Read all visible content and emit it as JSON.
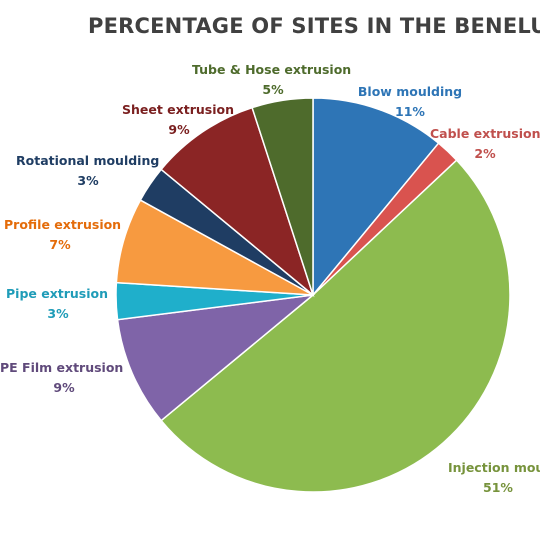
{
  "chart_data": {
    "type": "pie",
    "title": "PERCENTAGE  OF SITES IN THE BENELUX",
    "slices": [
      {
        "name": "Blow moulding",
        "value": 11,
        "label": "11%",
        "color": "#2E75B6"
      },
      {
        "name": "Cable extrusion",
        "value": 2,
        "label": "2%",
        "color": "#D9534F"
      },
      {
        "name": "Injection moulding",
        "value": 51,
        "label": "51%",
        "color": "#8DBB4F"
      },
      {
        "name": "PE Film extrusion",
        "value": 9,
        "label": "9%",
        "color": "#7F64A8"
      },
      {
        "name": "Pipe extrusion",
        "value": 3,
        "label": "3%",
        "color": "#1FAFCB"
      },
      {
        "name": "Profile extrusion",
        "value": 7,
        "label": "7%",
        "color": "#F79A40"
      },
      {
        "name": "Rotational moulding",
        "value": 3,
        "label": "3%",
        "color": "#1F3D63"
      },
      {
        "name": "Sheet extrusion",
        "value": 9,
        "label": "9%",
        "color": "#8B2525"
      },
      {
        "name": "Tube & Hose extrusion",
        "value": 5,
        "label": "5%",
        "color": "#4E6B2C"
      }
    ],
    "legend": "none"
  }
}
